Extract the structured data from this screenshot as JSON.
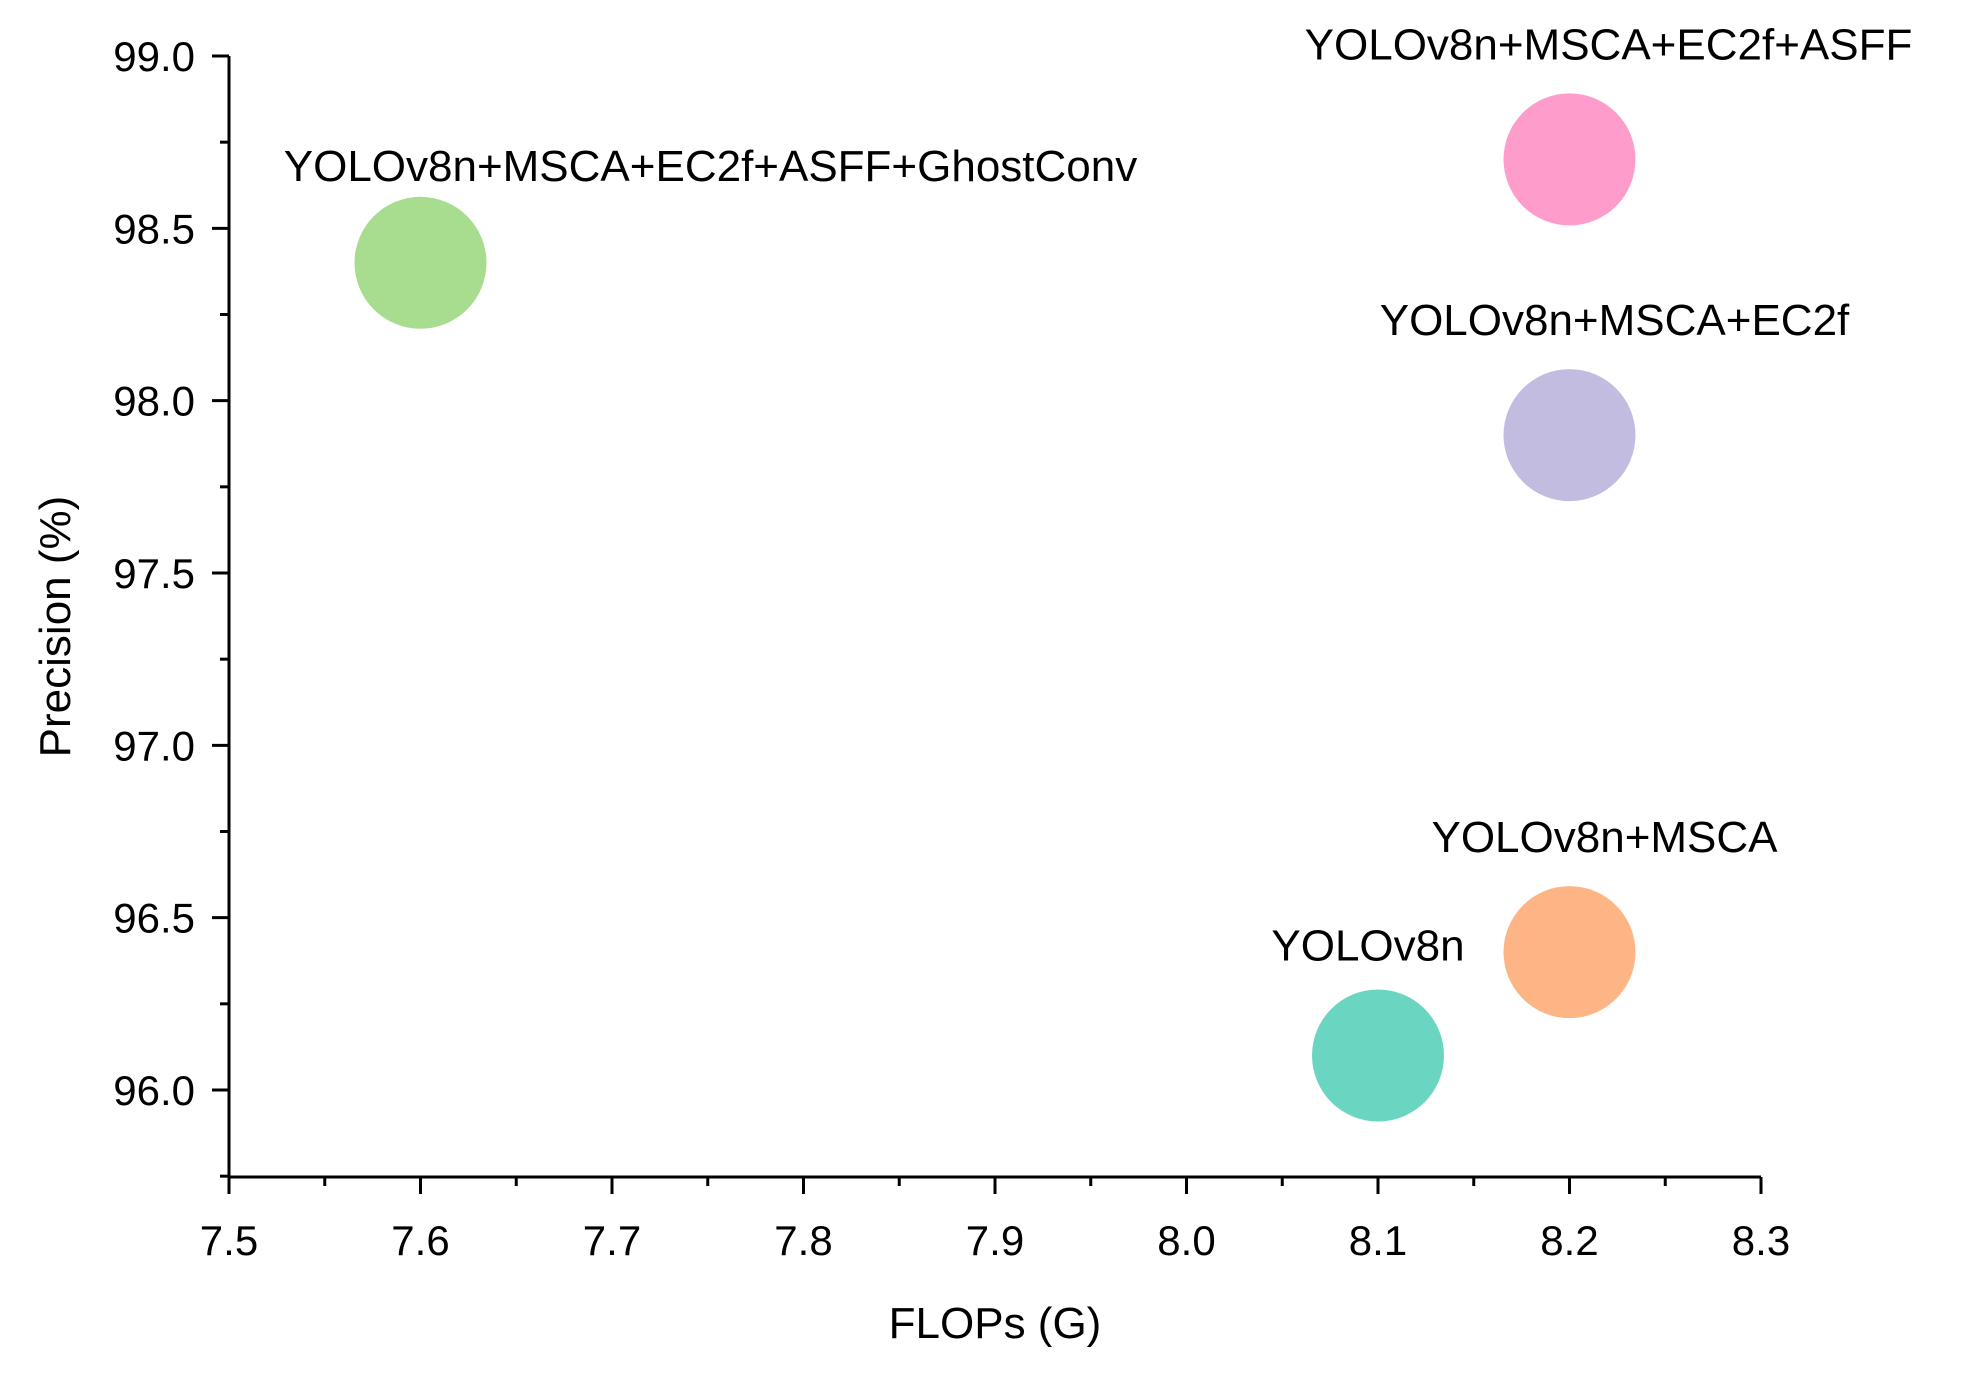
{
  "chart_data": {
    "type": "scatter",
    "title": "",
    "xlabel": "FLOPs (G)",
    "ylabel": "Precision (%)",
    "xlim": [
      7.5,
      8.3
    ],
    "ylim": [
      95.75,
      99.0
    ],
    "x_ticks": [
      "7.5",
      "7.6",
      "7.7",
      "7.8",
      "7.9",
      "8.0",
      "8.1",
      "8.2",
      "8.3"
    ],
    "y_ticks": [
      "96.0",
      "96.5",
      "97.0",
      "97.5",
      "98.0",
      "98.5",
      "99.0"
    ],
    "grid": false,
    "points": [
      {
        "name": "YOLOv8n",
        "x": 8.1,
        "y": 96.1,
        "color": "#6ad6c1"
      },
      {
        "name": "YOLOv8n+MSCA",
        "x": 8.2,
        "y": 96.4,
        "color": "#fdb585"
      },
      {
        "name": "YOLOv8n+MSCA+EC2f",
        "x": 8.2,
        "y": 97.9,
        "color": "#c2bde0"
      },
      {
        "name": "YOLOv8n+MSCA+EC2f+ASFF",
        "x": 8.2,
        "y": 98.7,
        "color": "#fe9ccb"
      },
      {
        "name": "YOLOv8n+MSCA+EC2f+ASFF+GhostConv",
        "x": 7.6,
        "y": 98.4,
        "color": "#a8dc8f"
      }
    ]
  }
}
